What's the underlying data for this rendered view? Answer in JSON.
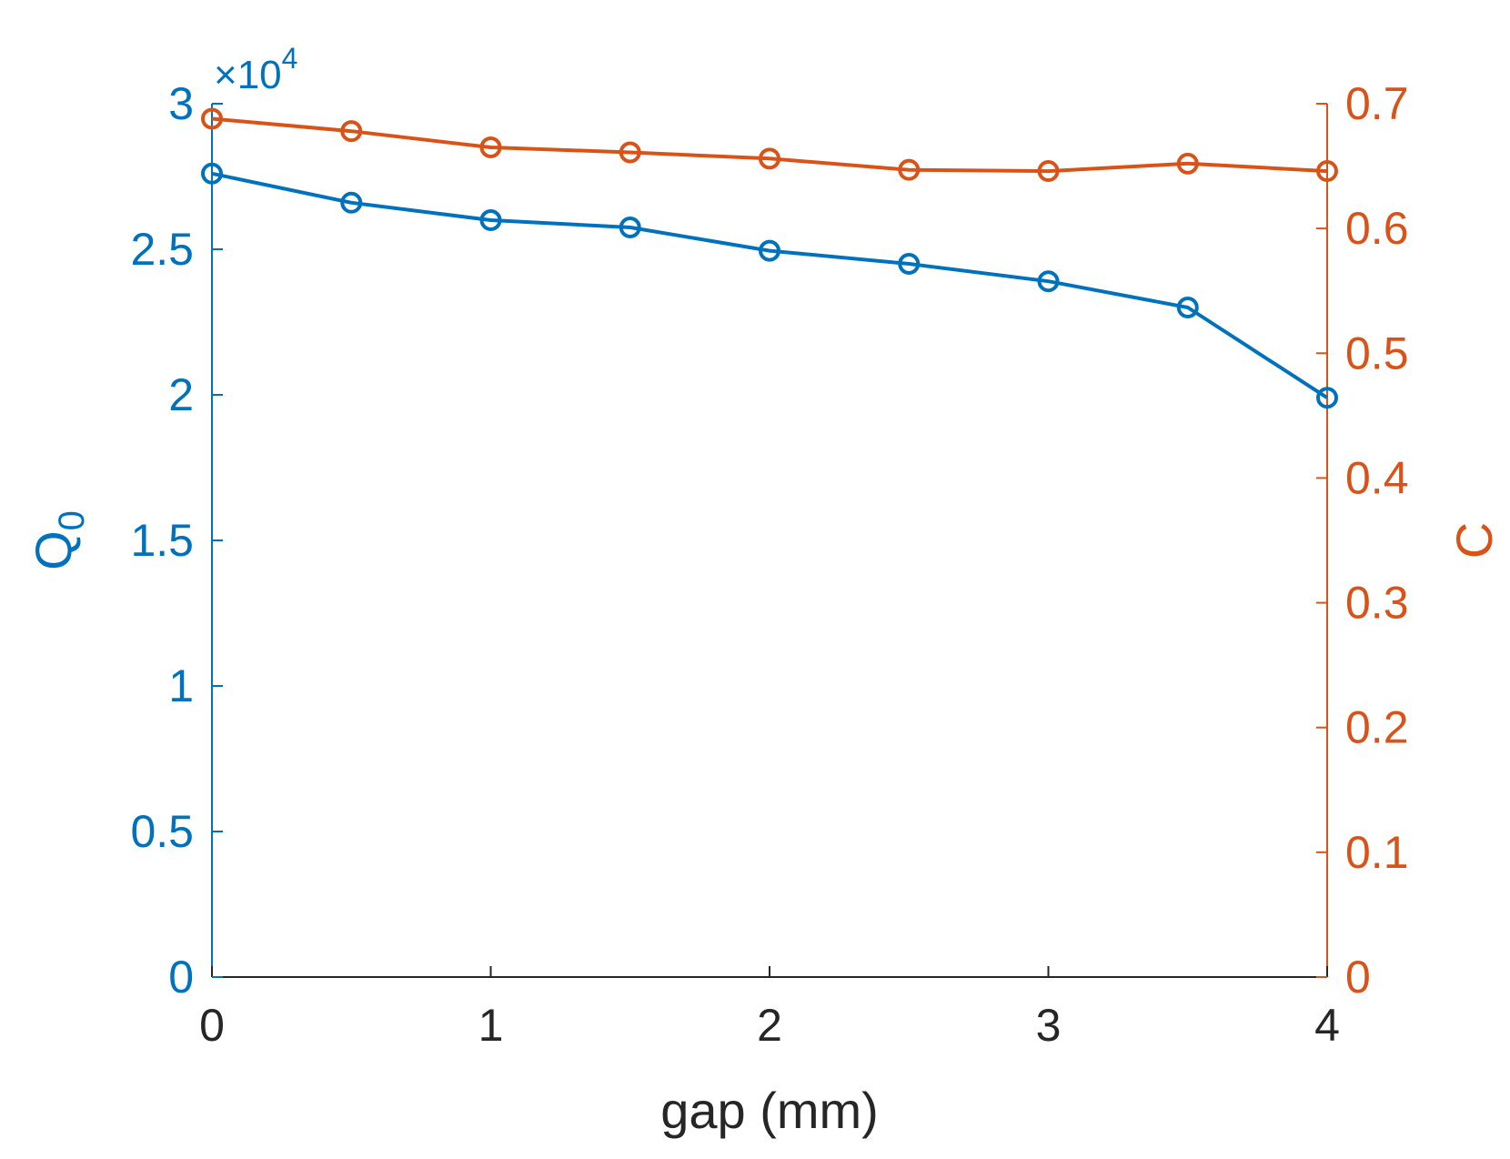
{
  "chart_data": {
    "type": "line",
    "x": [
      0,
      0.5,
      1,
      1.5,
      2,
      2.5,
      3,
      3.5,
      4
    ],
    "xlabel": "gap (mm)",
    "xlim": [
      0,
      4
    ],
    "xticks": [
      0,
      1,
      2,
      3,
      4
    ],
    "xtick_labels": [
      "0",
      "1",
      "2",
      "3",
      "4"
    ],
    "left_axis": {
      "ylabel": "Q",
      "ylabel_subscript": "0",
      "exponent_base": "×10",
      "exponent_power": "4",
      "ylim": [
        0,
        3
      ],
      "yticks": [
        0,
        0.5,
        1,
        1.5,
        2,
        2.5,
        3
      ],
      "ytick_labels": [
        "0",
        "0.5",
        "1",
        "1.5",
        "2",
        "2.5",
        "3"
      ],
      "color": "#0072BD"
    },
    "right_axis": {
      "ylabel": "C",
      "ylim": [
        0,
        0.7
      ],
      "yticks": [
        0,
        0.1,
        0.2,
        0.3,
        0.4,
        0.5,
        0.6,
        0.7
      ],
      "ytick_labels": [
        "0",
        "0.1",
        "0.2",
        "0.3",
        "0.4",
        "0.5",
        "0.6",
        "0.7"
      ],
      "color": "#D95319"
    },
    "series": [
      {
        "axis": "left",
        "color": "#0072BD",
        "marker": "circle",
        "values": [
          2.76,
          2.66,
          2.6,
          2.575,
          2.495,
          2.45,
          2.39,
          2.3,
          1.99
        ]
      },
      {
        "axis": "right",
        "color": "#D95319",
        "marker": "circle",
        "values": [
          0.688,
          0.678,
          0.665,
          0.661,
          0.656,
          0.647,
          0.646,
          0.652,
          0.646
        ]
      }
    ],
    "grid": false,
    "legend": "none"
  }
}
